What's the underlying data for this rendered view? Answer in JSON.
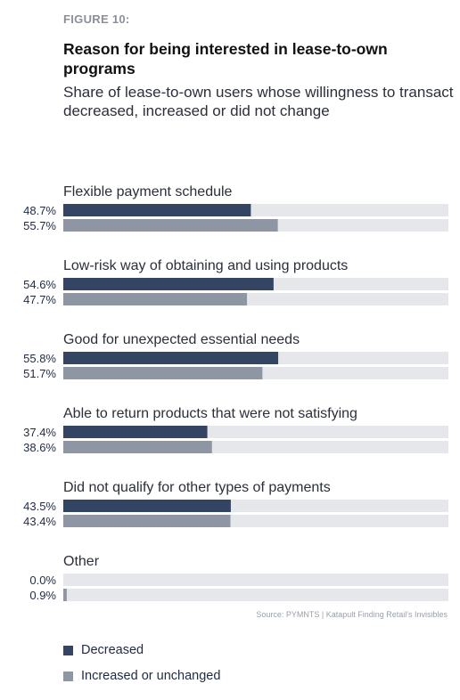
{
  "figure_label": "FIGURE 10:",
  "source": "Source: PYMNTS | Katapult    Finding Retail's Invisibles",
  "colors": {
    "decreased": "#344563",
    "increased": "#8e95a3",
    "track": "#e6e7ea"
  },
  "chart_data": {
    "type": "bar",
    "title": "Reason for being interested in lease-to-own programs",
    "subtitle": "Share of lease-to-own users whose willingness to transact decreased, increased or did not change",
    "categories": [
      "Flexible payment schedule",
      "Low-risk way of obtaining and using products",
      "Good for unexpected essential needs",
      "Able to return products that were not satisfying",
      "Did not qualify for other types of payments",
      "Other"
    ],
    "series": [
      {
        "name": "Decreased",
        "values": [
          48.7,
          54.6,
          55.8,
          37.4,
          43.5,
          0.0
        ]
      },
      {
        "name": "Increased or unchanged",
        "values": [
          55.7,
          47.7,
          51.7,
          38.6,
          43.4,
          0.9
        ]
      }
    ],
    "value_format": "{v}%",
    "xlim": [
      0,
      100
    ],
    "legend_position": "bottom-left",
    "grid": false
  }
}
